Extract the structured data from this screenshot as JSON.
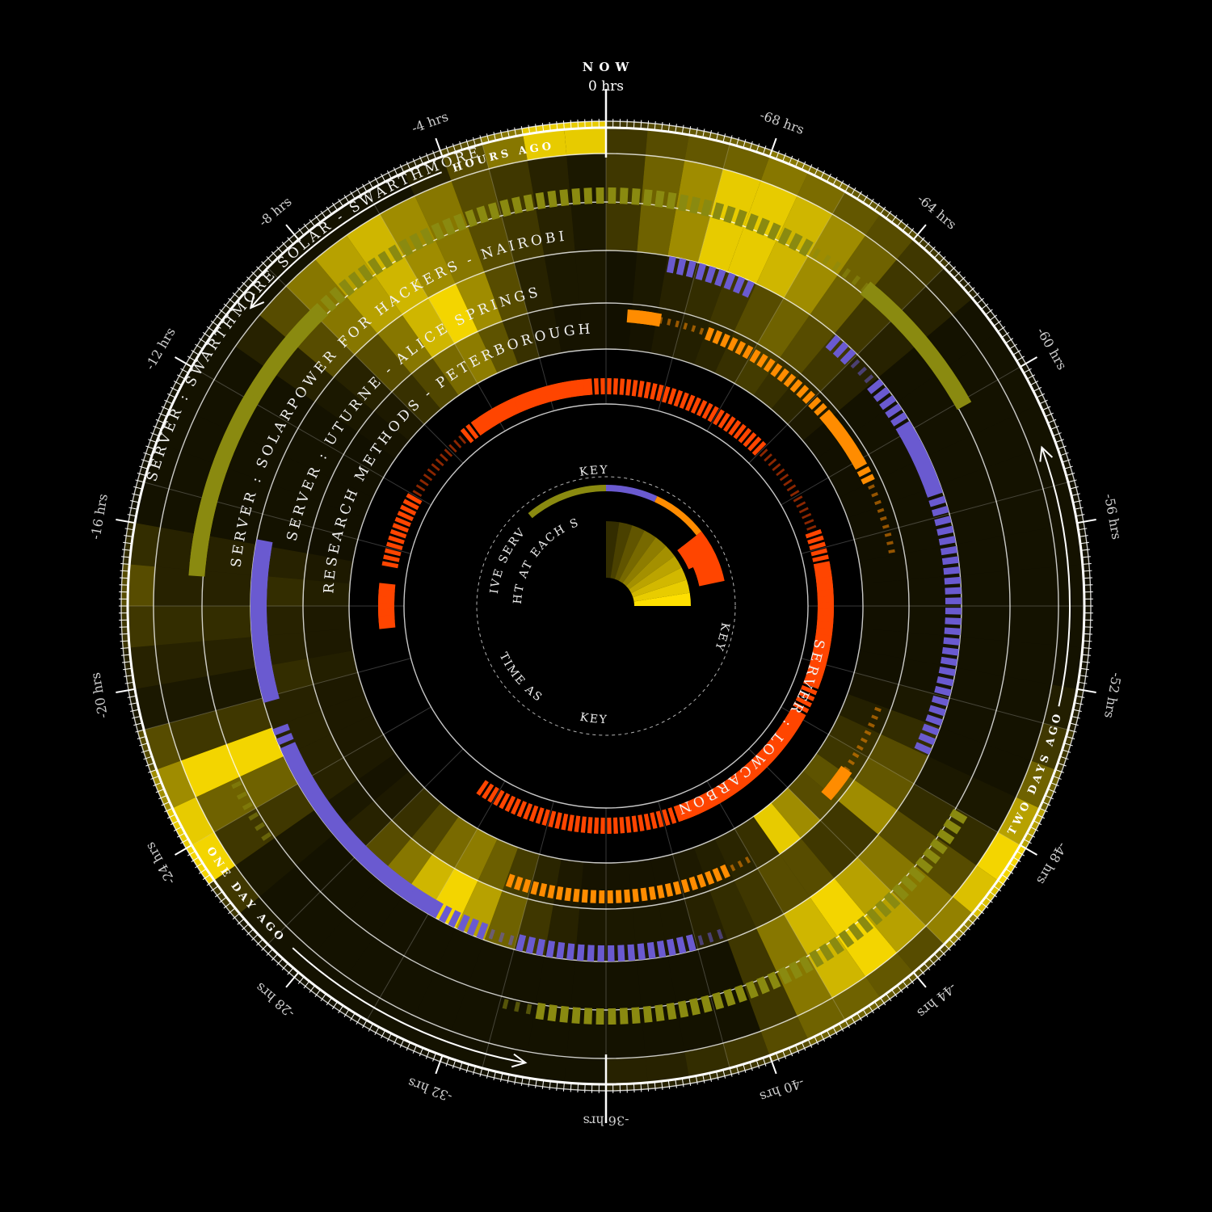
{
  "chart_data": {
    "type": "radial-timeline",
    "hours_total": 72,
    "direction": "counterclockwise from top",
    "top_label": {
      "title": "NOW",
      "hours": "0 hrs"
    },
    "tick_labels": [
      {
        "hour": 4,
        "text": "-4 hrs"
      },
      {
        "hour": 8,
        "text": "-8 hrs"
      },
      {
        "hour": 12,
        "text": "-12 hrs"
      },
      {
        "hour": 16,
        "text": "-16 hrs"
      },
      {
        "hour": 20,
        "text": "-20 hrs"
      },
      {
        "hour": 24,
        "text": "-24 hrs"
      },
      {
        "hour": 28,
        "text": "-28 hrs"
      },
      {
        "hour": 32,
        "text": "-32 hrs"
      },
      {
        "hour": 36,
        "text": "-36 hrs"
      },
      {
        "hour": 40,
        "text": "-40 hrs"
      },
      {
        "hour": 44,
        "text": "-44 hrs"
      },
      {
        "hour": 48,
        "text": "-48 hrs"
      },
      {
        "hour": 52,
        "text": "-52 hrs"
      },
      {
        "hour": 56,
        "text": "-56 hrs"
      },
      {
        "hour": 60,
        "text": "-60 hrs"
      },
      {
        "hour": 64,
        "text": "-64 hrs"
      },
      {
        "hour": 68,
        "text": "-68 hrs"
      }
    ],
    "period_labels": [
      {
        "text": "HOURS AGO",
        "from_hour": 1,
        "to_hour": 10
      },
      {
        "text": "ONE DAY AGO",
        "from_hour": 24,
        "to_hour": 34
      },
      {
        "text": "TWO DAYS AGO",
        "from_hour": 48,
        "to_hour": 58
      }
    ],
    "series": [
      {
        "name": "SERVER : SWARTHMORE SOLAR - SWARTHMORE",
        "color": "#8a8a10",
        "sunlight": [
          0.9,
          0.9,
          0.5,
          0.3,
          0.1,
          0.02,
          0.02,
          0.02,
          0.02,
          0.02,
          0.02,
          0.02,
          0.02,
          0.02,
          0.02,
          0.02,
          0.15,
          0.3,
          0.2,
          0.1,
          0.05,
          0.3,
          0.6,
          0.9,
          0.95,
          0.2,
          0.05,
          0.02,
          0.02,
          0.02,
          0.02,
          0.02,
          0.02,
          0.02,
          0.02,
          0.02,
          0.1,
          0.1,
          0.15,
          0.2,
          0.3,
          0.4,
          0.4,
          0.35,
          0.3,
          0.55,
          0.85,
          0.95,
          0.7,
          0.4,
          0.2,
          0.08,
          0.02,
          0.02,
          0.02,
          0.02,
          0.02,
          0.02,
          0.02,
          0.02,
          0.02,
          0.02,
          0.1,
          0.2,
          0.3,
          0.35,
          0.45,
          0.5,
          0.4,
          0.35,
          0.3,
          0.2
        ],
        "active": [
          2,
          2,
          2,
          2,
          2,
          2,
          2,
          2,
          2,
          3,
          3,
          3,
          3,
          3,
          3,
          3,
          3,
          0,
          0,
          0,
          0,
          0,
          0,
          1,
          1,
          0,
          0,
          0,
          0,
          0,
          0,
          0,
          0,
          1,
          2,
          2,
          2,
          2,
          2,
          2,
          2,
          2,
          2,
          2,
          2,
          2,
          2,
          2,
          0,
          0,
          0,
          0,
          0,
          0,
          0,
          0,
          0,
          0,
          0,
          0,
          3,
          3,
          3,
          3,
          1,
          1,
          2,
          2,
          2,
          2,
          2,
          2
        ]
      },
      {
        "name": "SERVER : SOLARPOWER FOR HACKERS - NAIROBI",
        "color": "#6a5ad0",
        "sunlight": [
          0.05,
          0.1,
          0.2,
          0.3,
          0.5,
          0.6,
          0.8,
          0.7,
          0.5,
          0.3,
          0.1,
          0.02,
          0.02,
          0.02,
          0.02,
          0.02,
          0.1,
          0.1,
          0.15,
          0.1,
          0.05,
          0.2,
          0.95,
          0.4,
          0.2,
          0.05,
          0.02,
          0.02,
          0.02,
          0.02,
          0.02,
          0.02,
          0.02,
          0.02,
          0.02,
          0.02,
          0.02,
          0.02,
          0.02,
          0.02,
          0.2,
          0.5,
          0.8,
          0.95,
          0.7,
          0.5,
          0.3,
          0.15,
          0.05,
          0.02,
          0.02,
          0.02,
          0.02,
          0.02,
          0.02,
          0.02,
          0.02,
          0.02,
          0.02,
          0.02,
          0.02,
          0.02,
          0.1,
          0.2,
          0.4,
          0.6,
          0.8,
          0.9,
          0.9,
          0.6,
          0.4,
          0.2
        ],
        "active": [
          0,
          0,
          0,
          0,
          0,
          0,
          0,
          0,
          0,
          0,
          0,
          0,
          0,
          0,
          0,
          0,
          3,
          3,
          3,
          3,
          3,
          0,
          2,
          3,
          3,
          3,
          3,
          3,
          3,
          3,
          2,
          2,
          1,
          2,
          2,
          2,
          2,
          2,
          2,
          1,
          0,
          0,
          0,
          0,
          0,
          0,
          0,
          0,
          0,
          2,
          2,
          2,
          2,
          2,
          2,
          2,
          2,
          2,
          3,
          3,
          2,
          2,
          1,
          2,
          0,
          0,
          0,
          2,
          2,
          2,
          0,
          0
        ]
      },
      {
        "name": "SERVER : UTURNE - ALICE SPRINGS",
        "color": "#ff8c00",
        "sunlight": [
          0.05,
          0.05,
          0.1,
          0.3,
          0.6,
          0.95,
          0.8,
          0.5,
          0.3,
          0.1,
          0.05,
          0.02,
          0.02,
          0.02,
          0.02,
          0.02,
          0.1,
          0.15,
          0.1,
          0.1,
          0.15,
          0.1,
          0.1,
          0.1,
          0.1,
          0.05,
          0.1,
          0.3,
          0.5,
          0.8,
          0.95,
          0.7,
          0.4,
          0.2,
          0.1,
          0.05,
          0.05,
          0.05,
          0.05,
          0.1,
          0.15,
          0.2,
          0.3,
          0.3,
          0.2,
          0.2,
          0.6,
          0.35,
          0.3,
          0.15,
          0.05,
          0.02,
          0.02,
          0.02,
          0.02,
          0.02,
          0.02,
          0.02,
          0.02,
          0.02,
          0.02,
          0.02,
          0.1,
          0.2,
          0.3,
          0.4,
          0.3,
          0.2,
          0.15,
          0.1,
          0.05,
          0.02
        ],
        "active": [
          0,
          0,
          0,
          0,
          0,
          0,
          0,
          0,
          0,
          0,
          0,
          0,
          0,
          0,
          0,
          0,
          0,
          0,
          0,
          0,
          0,
          0,
          0,
          0,
          0,
          0,
          0,
          0,
          0,
          0,
          0,
          0,
          2,
          2,
          2,
          2,
          2,
          2,
          2,
          2,
          2,
          1,
          0,
          0,
          0,
          0,
          3,
          1,
          1,
          1,
          0,
          0,
          0,
          0,
          0,
          0,
          1,
          1,
          1,
          2,
          3,
          3,
          2,
          2,
          2,
          2,
          2,
          2,
          1,
          1,
          3,
          0
        ]
      },
      {
        "name": "RESEARCH METHODS - PETERBOROUGH",
        "color": "#ff4500",
        "sunlight": [
          0.02,
          0.02,
          0.02,
          0.02,
          0.02,
          0.02,
          0.02,
          0.02,
          0.02,
          0.02,
          0.02,
          0.02,
          0.02,
          0.02,
          0.02,
          0.02,
          0.02,
          0.02,
          0.02,
          0.02,
          0.02,
          0.02,
          0.02,
          0.02,
          0.02,
          0.02,
          0.02,
          0.02,
          0.02,
          0.02,
          0.02,
          0.02,
          0.02,
          0.02,
          0.02,
          0.02,
          0.02,
          0.02,
          0.02,
          0.02,
          0.02,
          0.02,
          0.02,
          0.9,
          0.6,
          0.3,
          0.1,
          0.02,
          0.02,
          0.02,
          0.02,
          0.02,
          0.02,
          0.02,
          0.02,
          0.02,
          0.02,
          0.02,
          0.02,
          0.02,
          0.02,
          0.02,
          0.02,
          0.02,
          0.02,
          0.02,
          0.02,
          0.02,
          0.02,
          0.02,
          0.02,
          0.02
        ],
        "active": [
          2,
          3,
          3,
          3,
          3,
          3,
          3,
          2,
          1,
          1,
          1,
          1,
          2,
          2,
          2,
          2,
          0,
          3,
          3,
          0,
          0,
          0,
          0,
          0,
          0,
          0,
          0,
          0,
          0,
          2,
          2,
          2,
          2,
          2,
          2,
          2,
          2,
          2,
          2,
          2,
          3,
          3,
          3,
          3,
          3,
          3,
          3,
          3,
          2,
          2,
          3,
          3,
          3,
          3,
          3,
          3,
          2,
          2,
          1,
          1,
          1,
          1,
          1,
          2,
          2,
          2,
          2,
          2,
          2,
          2,
          2,
          2
        ]
      }
    ],
    "inner_label": "SERVER : LOWCARBON",
    "key": {
      "title": "KEY",
      "labels": [
        "ACTIVE SERVER :",
        "SUNLIGHT AT EACH SERVER :",
        "TIME AS",
        "KEY",
        "KEY"
      ],
      "server_colors": [
        "#8a8a10",
        "#6a5ad0",
        "#ff8c00",
        "#ff4500"
      ],
      "sunlight_color": "#ffe000"
    }
  }
}
